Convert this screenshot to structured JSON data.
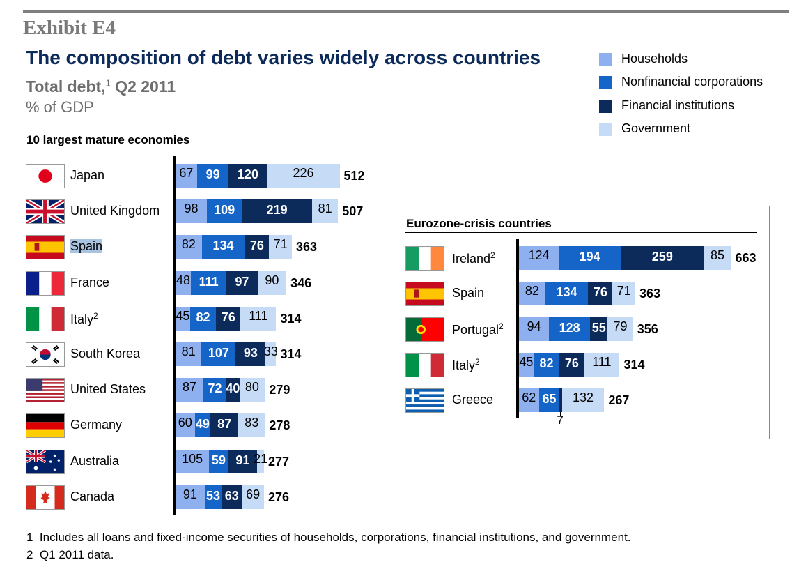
{
  "header": {
    "exhibit": "Exhibit E4",
    "title": "The composition of debt varies widely across countries",
    "subtitle": "Total debt,",
    "subtitle_sup": "1",
    "subtitle_tail": "Q2 2011",
    "units": "% of GDP"
  },
  "legend": [
    {
      "label": "Households",
      "color": "#8fb0ef"
    },
    {
      "label": "Nonfinancial corporations",
      "color": "#1565c9"
    },
    {
      "label": "Financial institutions",
      "color": "#0c2a5a"
    },
    {
      "label": "Government",
      "color": "#c6dbf5"
    }
  ],
  "chart_data": [
    {
      "type": "bar",
      "stacked": true,
      "orientation": "horizontal",
      "title": "10 largest mature economies",
      "series_names": [
        "Households",
        "Nonfinancial corporations",
        "Financial institutions",
        "Government"
      ],
      "rows": [
        {
          "country": "Japan",
          "note": "",
          "flag": "japan-flag",
          "values": [
            67,
            99,
            120,
            226
          ],
          "total": 512
        },
        {
          "country": "United Kingdom",
          "note": "",
          "flag": "uk-flag",
          "values": [
            98,
            109,
            219,
            81
          ],
          "total": 507
        },
        {
          "country": "Spain",
          "note": "",
          "flag": "spain-flag",
          "values": [
            82,
            134,
            76,
            71
          ],
          "total": 363,
          "highlight": true
        },
        {
          "country": "France",
          "note": "",
          "flag": "france-flag",
          "values": [
            48,
            111,
            97,
            90
          ],
          "total": 346
        },
        {
          "country": "Italy",
          "note": "2",
          "flag": "italy-flag",
          "values": [
            45,
            82,
            76,
            111
          ],
          "total": 314
        },
        {
          "country": "South Korea",
          "note": "",
          "flag": "south-korea-flag",
          "values": [
            81,
            107,
            93,
            33
          ],
          "total": 314
        },
        {
          "country": "United States",
          "note": "",
          "flag": "usa-flag",
          "values": [
            87,
            72,
            40,
            80
          ],
          "total": 279
        },
        {
          "country": "Germany",
          "note": "",
          "flag": "germany-flag",
          "values": [
            60,
            49,
            87,
            83
          ],
          "total": 278
        },
        {
          "country": "Australia",
          "note": "",
          "flag": "australia-flag",
          "values": [
            105,
            59,
            91,
            21
          ],
          "total": 277
        },
        {
          "country": "Canada",
          "note": "",
          "flag": "canada-flag",
          "values": [
            91,
            53,
            63,
            69
          ],
          "total": 276
        }
      ]
    },
    {
      "type": "bar",
      "stacked": true,
      "orientation": "horizontal",
      "title": "Eurozone-crisis countries",
      "series_names": [
        "Households",
        "Nonfinancial corporations",
        "Financial institutions",
        "Government"
      ],
      "rows": [
        {
          "country": "Ireland",
          "note": "2",
          "flag": "ireland-flag",
          "values": [
            124,
            194,
            259,
            85
          ],
          "total": 663
        },
        {
          "country": "Spain",
          "note": "",
          "flag": "spain-flag",
          "values": [
            82,
            134,
            76,
            71
          ],
          "total": 363
        },
        {
          "country": "Portugal",
          "note": "2",
          "flag": "portugal-flag",
          "values": [
            94,
            128,
            55,
            79
          ],
          "total": 356
        },
        {
          "country": "Italy",
          "note": "2",
          "flag": "italy-flag",
          "values": [
            45,
            82,
            76,
            111
          ],
          "total": 314
        },
        {
          "country": "Greece",
          "note": "",
          "flag": "greece-flag",
          "values": [
            62,
            65,
            7,
            132
          ],
          "total": 267,
          "callout": "7"
        }
      ]
    }
  ],
  "footnotes": [
    {
      "num": "1",
      "text": "Includes all loans and fixed-income securities of households, corporations, financial institutions, and government."
    },
    {
      "num": "2",
      "text": "Q1 2011 data."
    }
  ]
}
